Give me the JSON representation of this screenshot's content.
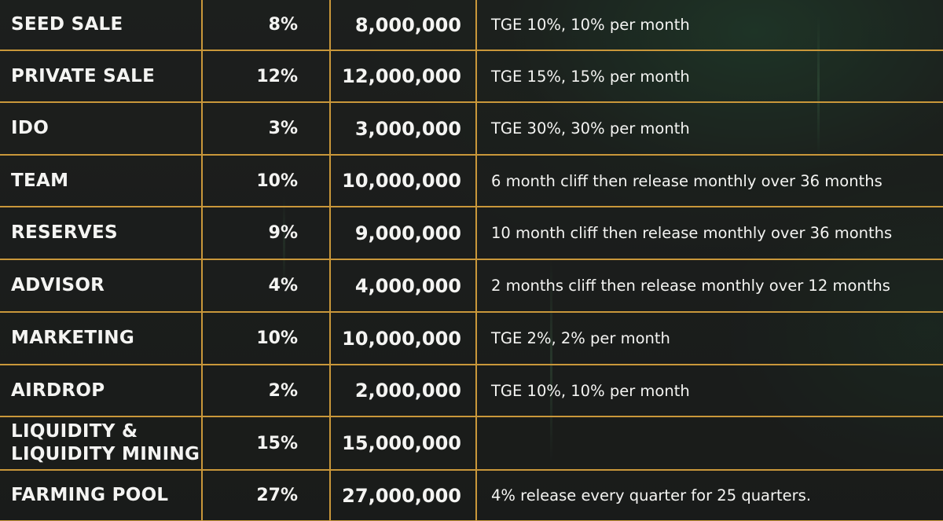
{
  "colors": {
    "background": "#1b1d1c",
    "grid": "#c9973a",
    "text": "#f4f4f2",
    "glow": "#2f8a55"
  },
  "rows": [
    {
      "name": "SEED SALE",
      "percent": "8%",
      "amount": "8,000,000",
      "vesting": "TGE 10%, 10% per month"
    },
    {
      "name": "PRIVATE SALE",
      "percent": "12%",
      "amount": "12,000,000",
      "vesting": "TGE 15%, 15% per month"
    },
    {
      "name": "IDO",
      "percent": "3%",
      "amount": "3,000,000",
      "vesting": "TGE 30%, 30% per month"
    },
    {
      "name": "TEAM",
      "percent": "10%",
      "amount": "10,000,000",
      "vesting": "6 month cliff then release monthly over 36 months"
    },
    {
      "name": "RESERVES",
      "percent": "9%",
      "amount": "9,000,000",
      "vesting": "10 month cliff then release monthly over 36 months"
    },
    {
      "name": "ADVISOR",
      "percent": "4%",
      "amount": "4,000,000",
      "vesting": "2 months cliff then release monthly over 12 months"
    },
    {
      "name": "MARKETING",
      "percent": "10%",
      "amount": "10,000,000",
      "vesting": "TGE 2%, 2% per month"
    },
    {
      "name": "AIRDROP",
      "percent": "2%",
      "amount": "2,000,000",
      "vesting": "TGE 10%, 10% per month"
    },
    {
      "name_line1": "LIQUIDITY &",
      "name_line2": "LIQUIDITY MINING",
      "percent": "15%",
      "amount": "15,000,000",
      "vesting": ""
    },
    {
      "name": "FARMING POOL",
      "percent": "27%",
      "amount": "27,000,000",
      "vesting": "4% release every quarter for 25 quarters."
    }
  ]
}
